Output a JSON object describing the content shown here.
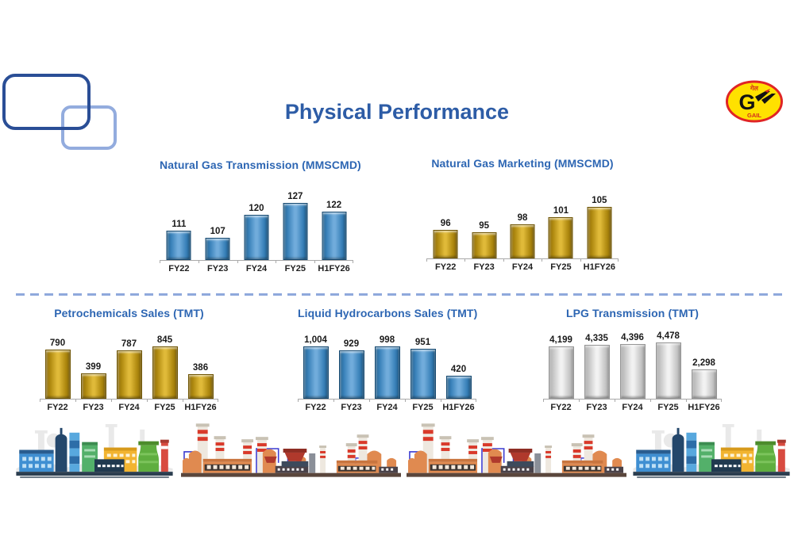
{
  "slide": {
    "title": "Physical Performance"
  },
  "logo": {
    "hindi_text": "गेल",
    "brand_text": "GAIL",
    "bg_color": "#FFE100",
    "ring_color": "#E02525",
    "text_color": "#D42B1E"
  },
  "colors": {
    "main_title": "#2D5CA6",
    "chart_title": "#2D66B3",
    "divider": "#8FA9DC",
    "axis": "#A9A9A9",
    "label": "#1A1A1A"
  },
  "chart_data": [
    {
      "type": "bar",
      "title": "Natural Gas Transmission (MMSCMD)",
      "categories": [
        "FY22",
        "FY23",
        "FY24",
        "FY25",
        "H1FY26"
      ],
      "values": [
        111,
        107,
        120,
        127,
        122
      ],
      "value_labels": [
        "111",
        "107",
        "120",
        "127",
        "122"
      ],
      "bar_style": "blue",
      "bar_color": "#3A82BA",
      "ylim": [
        95,
        130
      ],
      "grid": false,
      "legend": false,
      "data_labels": "above-bars"
    },
    {
      "type": "bar",
      "title": "Natural Gas Marketing (MMSCMD)",
      "categories": [
        "FY22",
        "FY23",
        "FY24",
        "FY25",
        "H1FY26"
      ],
      "values": [
        96,
        95,
        98,
        101,
        105
      ],
      "value_labels": [
        "96",
        "95",
        "98",
        "101",
        "105"
      ],
      "bar_style": "gold",
      "bar_color": "#C79F1E",
      "ylim": [
        85,
        108
      ],
      "grid": false,
      "legend": false,
      "data_labels": "above-bars"
    },
    {
      "type": "bar",
      "title": "Petrochemicals Sales (TMT)",
      "categories": [
        "FY22",
        "FY23",
        "FY24",
        "FY25",
        "H1FY26"
      ],
      "values": [
        790,
        399,
        787,
        845,
        386
      ],
      "value_labels": [
        "790",
        "399",
        "787",
        "845",
        "386"
      ],
      "bar_style": "gold",
      "bar_color": "#C79F1E",
      "ylim": [
        0,
        900
      ],
      "grid": false,
      "legend": false,
      "data_labels": "above-bars"
    },
    {
      "type": "bar",
      "title": "Liquid Hydrocarbons Sales (TMT)",
      "categories": [
        "FY22",
        "FY23",
        "FY24",
        "FY25",
        "H1FY26"
      ],
      "values": [
        1004,
        929,
        998,
        951,
        420
      ],
      "value_labels": [
        "1,004",
        "929",
        "998",
        "951",
        "420"
      ],
      "bar_style": "blue",
      "bar_color": "#3A82BA",
      "ylim": [
        0,
        1050
      ],
      "grid": false,
      "legend": false,
      "data_labels": "above-bars"
    },
    {
      "type": "bar",
      "title": "LPG Transmission (TMT)",
      "categories": [
        "FY22",
        "FY23",
        "FY24",
        "FY25",
        "H1FY26"
      ],
      "values": [
        4199,
        4335,
        4396,
        4478,
        2298
      ],
      "value_labels": [
        "4,199",
        "4,335",
        "4,396",
        "4,478",
        "2,298"
      ],
      "bar_style": "white",
      "bar_color": "#DCDCDC",
      "ylim": [
        0,
        4700
      ],
      "grid": false,
      "legend": false,
      "data_labels": "above-bars"
    }
  ]
}
